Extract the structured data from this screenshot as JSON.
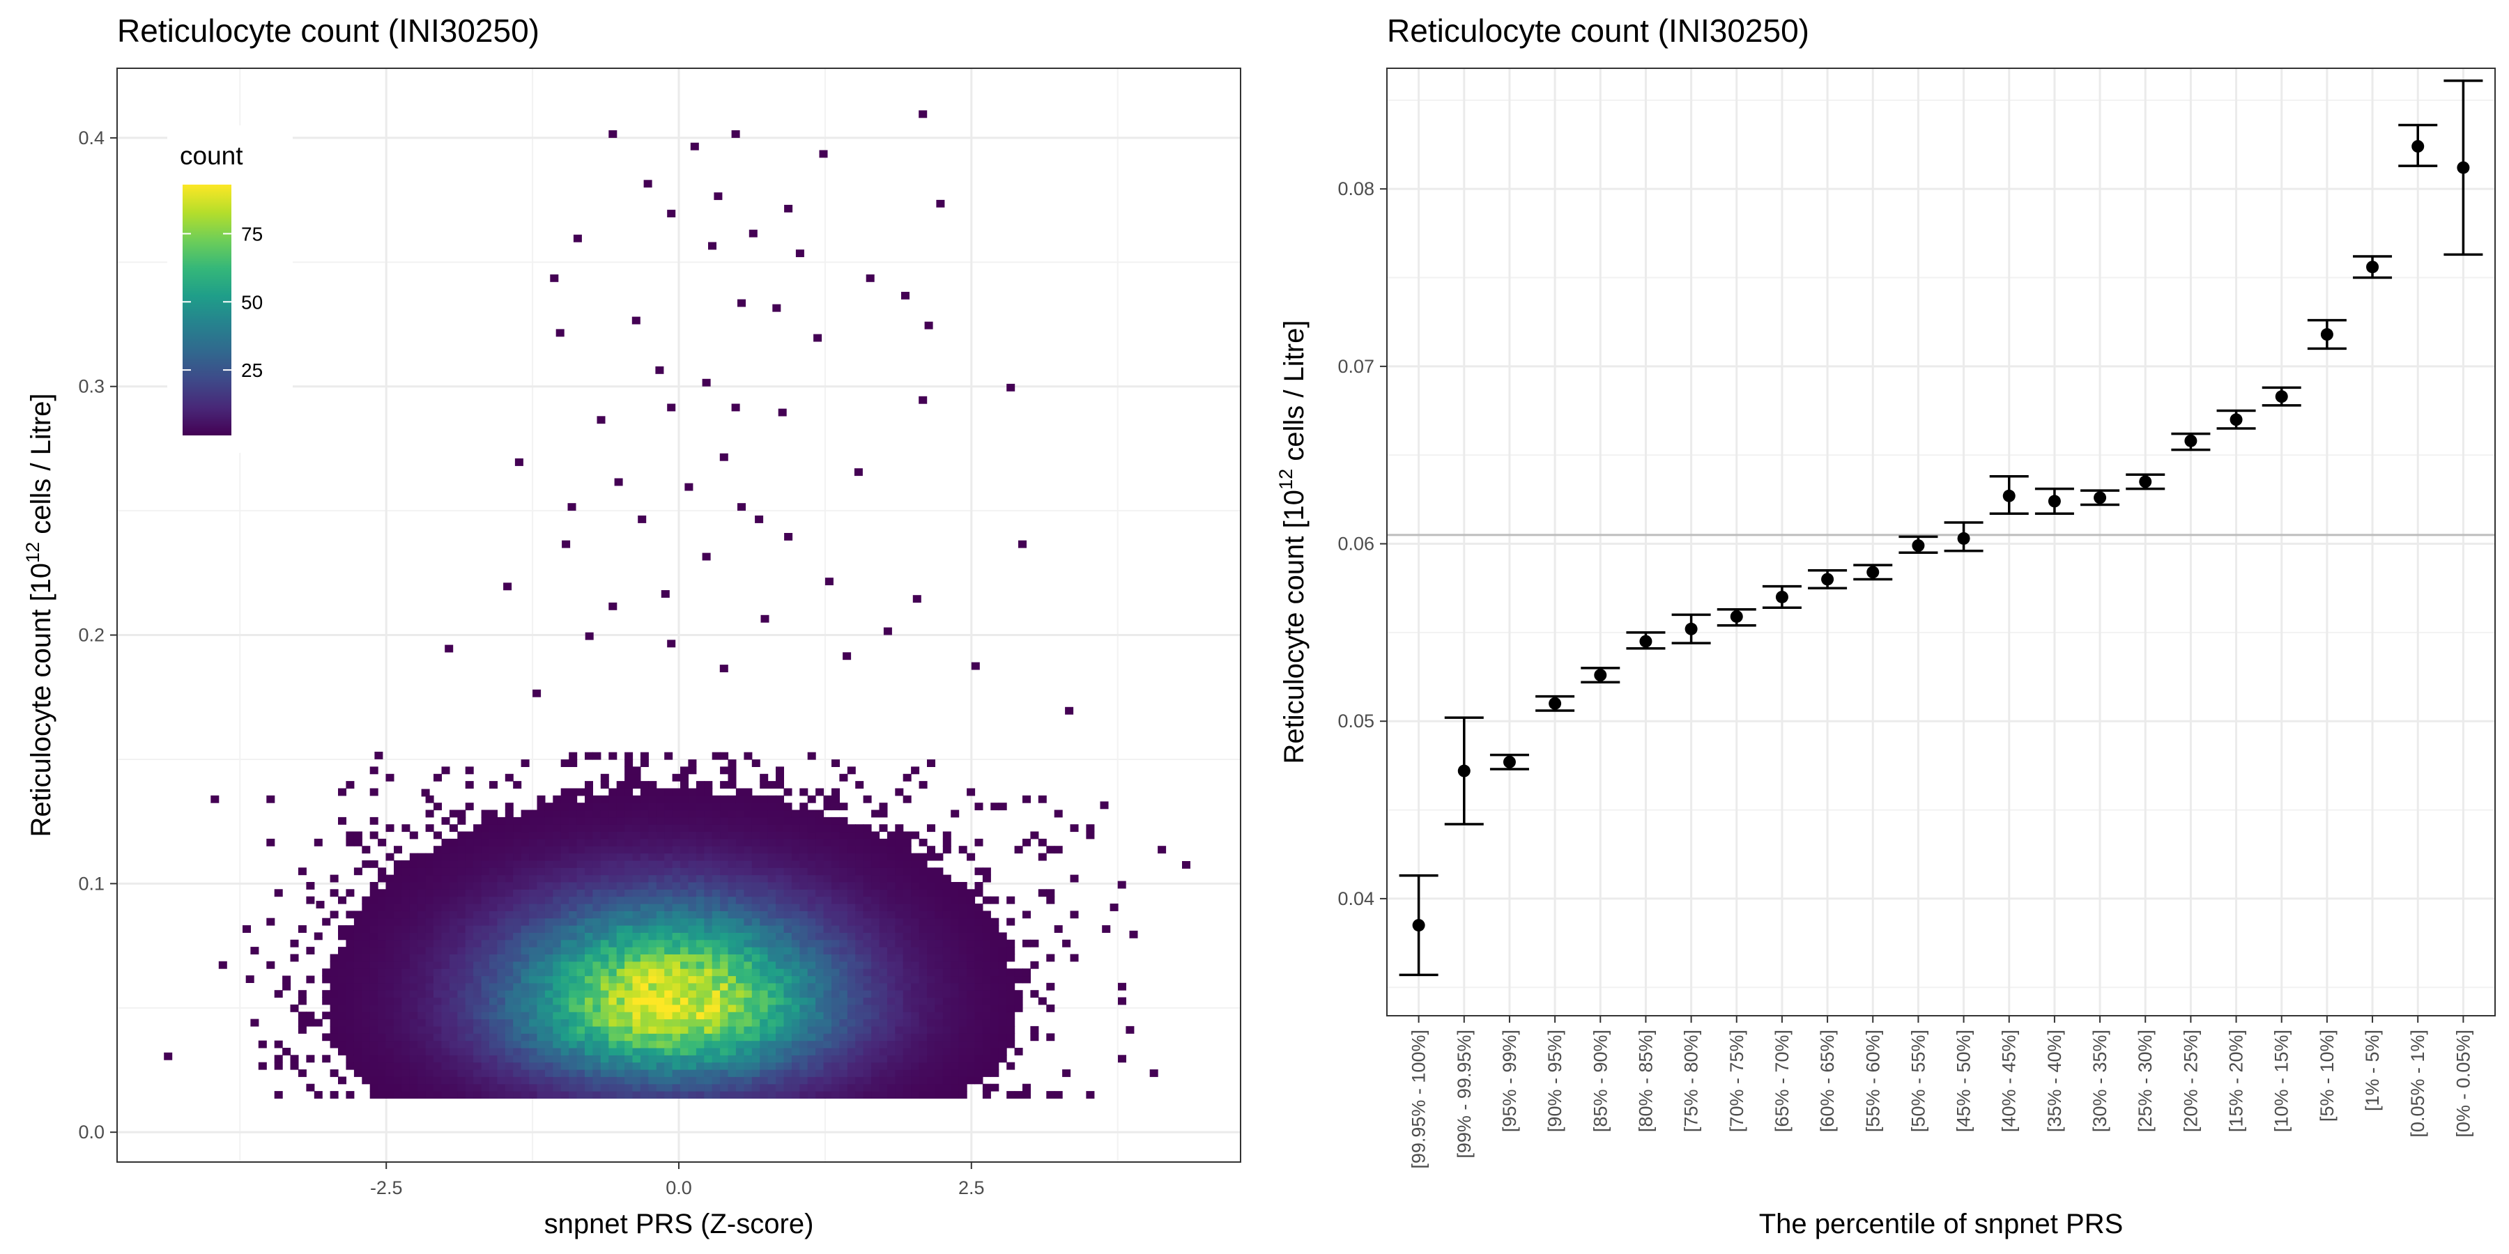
{
  "chart_data": [
    {
      "type": "heatmap",
      "title": "Reticulocyte count (INI30250)",
      "xlabel": "snpnet PRS (Z-score)",
      "ylabel_main": "Reticulocyte count [10",
      "ylabel_sup": "12",
      "ylabel_tail": " cells / Litre]",
      "xlim": [
        -4.8,
        4.8
      ],
      "ylim": [
        -0.012,
        0.428
      ],
      "x_ticks": [
        -2.5,
        0.0,
        2.5
      ],
      "x_tick_labels": [
        "-2.5",
        "0.0",
        "2.5"
      ],
      "y_ticks": [
        0.0,
        0.1,
        0.2,
        0.3,
        0.4
      ],
      "y_tick_labels": [
        "0.0",
        "0.1",
        "0.2",
        "0.3",
        "0.4"
      ],
      "fill_variable": "count",
      "legend": {
        "title": "count",
        "ticks": [
          25,
          50,
          75
        ],
        "tick_labels": [
          "25",
          "50",
          "75"
        ],
        "min": 1,
        "max": 93,
        "placement": "top-left"
      },
      "colormap": [
        "#440154",
        "#482878",
        "#3e4a89",
        "#31688e",
        "#26828e",
        "#1f9e89",
        "#35b779",
        "#6ece58",
        "#b5de2b",
        "#fde725"
      ],
      "density": {
        "bulk_center_x": -0.1,
        "bulk_center_y": 0.05,
        "bulk_sd_x": 1.0,
        "bulk_sd_y": 0.022,
        "peak_count": 93
      },
      "outliers": [
        [
          -0.6,
          0.4
        ],
        [
          0.1,
          0.395
        ],
        [
          0.45,
          0.4
        ],
        [
          2.05,
          0.408
        ],
        [
          1.2,
          0.392
        ],
        [
          -0.3,
          0.38
        ],
        [
          0.3,
          0.375
        ],
        [
          0.9,
          0.37
        ],
        [
          2.2,
          0.372
        ],
        [
          -0.1,
          0.368
        ],
        [
          0.6,
          0.36
        ],
        [
          1.0,
          0.352
        ],
        [
          -0.9,
          0.358
        ],
        [
          0.25,
          0.355
        ],
        [
          1.6,
          0.342
        ],
        [
          -1.1,
          0.342
        ],
        [
          0.5,
          0.332
        ],
        [
          1.9,
          0.335
        ],
        [
          -0.4,
          0.325
        ],
        [
          0.8,
          0.33
        ],
        [
          -1.05,
          0.32
        ],
        [
          2.1,
          0.323
        ],
        [
          1.15,
          0.318
        ],
        [
          -0.2,
          0.305
        ],
        [
          0.2,
          0.3
        ],
        [
          2.8,
          0.298
        ],
        [
          -0.7,
          0.285
        ],
        [
          0.45,
          0.29
        ],
        [
          0.85,
          0.288
        ],
        [
          -0.1,
          0.29
        ],
        [
          2.05,
          0.293
        ],
        [
          -1.4,
          0.268
        ],
        [
          0.35,
          0.27
        ],
        [
          -0.55,
          0.26
        ],
        [
          0.05,
          0.258
        ],
        [
          1.5,
          0.264
        ],
        [
          -0.95,
          0.25
        ],
        [
          0.5,
          0.25
        ],
        [
          -0.35,
          0.245
        ],
        [
          0.2,
          0.23
        ],
        [
          0.65,
          0.245
        ],
        [
          2.9,
          0.235
        ],
        [
          -1.0,
          0.235
        ],
        [
          0.9,
          0.238
        ],
        [
          -1.5,
          0.218
        ],
        [
          -0.15,
          0.215
        ],
        [
          1.25,
          0.22
        ],
        [
          -0.6,
          0.21
        ],
        [
          0.7,
          0.205
        ],
        [
          2.0,
          0.213
        ],
        [
          -2.0,
          0.193
        ],
        [
          1.75,
          0.2
        ],
        [
          -0.8,
          0.198
        ],
        [
          2.5,
          0.186
        ],
        [
          1.4,
          0.19
        ],
        [
          -0.1,
          0.195
        ],
        [
          0.35,
          0.185
        ],
        [
          -1.25,
          0.175
        ],
        [
          3.3,
          0.168
        ],
        [
          -2.6,
          0.15
        ],
        [
          -2.2,
          0.135
        ],
        [
          3.6,
          0.13
        ],
        [
          4.3,
          0.106
        ],
        [
          3.75,
          0.098
        ],
        [
          -3.1,
          0.09
        ],
        [
          -4.4,
          0.029
        ],
        [
          3.85,
          0.078
        ],
        [
          -3.7,
          0.06
        ]
      ]
    },
    {
      "type": "scatter",
      "title": "Reticulocyte count (INI30250)",
      "xlabel": "The percentile of snpnet PRS",
      "ylabel_main": "Reticulocyte count [10",
      "ylabel_sup": "12",
      "ylabel_tail": " cells / Litre]",
      "ylim": [
        0.0334,
        0.0868
      ],
      "y_ticks": [
        0.04,
        0.05,
        0.06,
        0.07,
        0.08
      ],
      "y_tick_labels": [
        "0.04",
        "0.05",
        "0.06",
        "0.07",
        "0.08"
      ],
      "hline": 0.0605,
      "categories": [
        "[99.95% - 100%]",
        "[99% - 99.95%]",
        "[95% - 99%]",
        "[90% - 95%]",
        "[85% - 90%]",
        "[80% - 85%]",
        "[75% - 80%]",
        "[70% - 75%]",
        "[65% - 70%]",
        "[60% - 65%]",
        "[55% - 60%]",
        "[50% - 55%]",
        "[45% - 50%]",
        "[40% - 45%]",
        "[35% - 40%]",
        "[30% - 35%]",
        "[25% - 30%]",
        "[20% - 25%]",
        "[15% - 20%]",
        "[10% - 15%]",
        "[5% - 10%]",
        "[1% - 5%]",
        "[0.05% - 1%]",
        "[0% - 0.05%]"
      ],
      "values": [
        0.0385,
        0.0472,
        0.0477,
        0.051,
        0.0526,
        0.0545,
        0.0552,
        0.0559,
        0.057,
        0.058,
        0.0584,
        0.0599,
        0.0603,
        0.0627,
        0.0624,
        0.0626,
        0.0635,
        0.0658,
        0.067,
        0.0683,
        0.0718,
        0.0756,
        0.0824,
        0.0812
      ],
      "lower": [
        0.0357,
        0.0442,
        0.0473,
        0.0506,
        0.0522,
        0.0541,
        0.0544,
        0.0554,
        0.0564,
        0.0575,
        0.058,
        0.0595,
        0.0596,
        0.0617,
        0.0617,
        0.0622,
        0.0631,
        0.0653,
        0.0665,
        0.0678,
        0.071,
        0.075,
        0.0813,
        0.0763
      ],
      "upper": [
        0.0413,
        0.0502,
        0.0481,
        0.0514,
        0.053,
        0.055,
        0.056,
        0.0563,
        0.0576,
        0.0585,
        0.0588,
        0.0604,
        0.0612,
        0.0638,
        0.0631,
        0.063,
        0.0639,
        0.0662,
        0.0675,
        0.0688,
        0.0726,
        0.0762,
        0.0836,
        0.0861
      ]
    }
  ]
}
